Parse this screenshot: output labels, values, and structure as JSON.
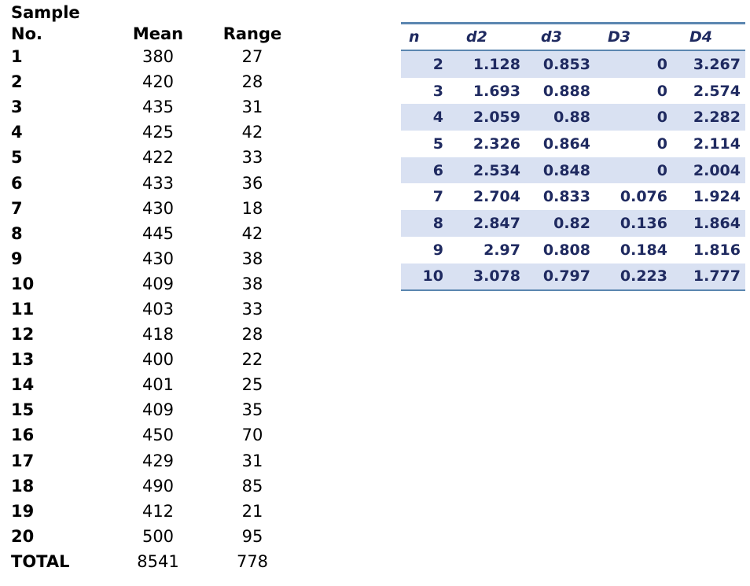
{
  "sample_table": {
    "title_line1": "Sample",
    "headers": [
      "No.",
      "Mean",
      "Range"
    ],
    "rows": [
      [
        "1",
        "380",
        "27"
      ],
      [
        "2",
        "420",
        "28"
      ],
      [
        "3",
        "435",
        "31"
      ],
      [
        "4",
        "425",
        "42"
      ],
      [
        "5",
        "422",
        "33"
      ],
      [
        "6",
        "433",
        "36"
      ],
      [
        "7",
        "430",
        "18"
      ],
      [
        "8",
        "445",
        "42"
      ],
      [
        "9",
        "430",
        "38"
      ],
      [
        "10",
        "409",
        "38"
      ],
      [
        "11",
        "403",
        "33"
      ],
      [
        "12",
        "418",
        "28"
      ],
      [
        "13",
        "400",
        "22"
      ],
      [
        "14",
        "401",
        "25"
      ],
      [
        "15",
        "409",
        "35"
      ],
      [
        "16",
        "450",
        "70"
      ],
      [
        "17",
        "429",
        "31"
      ],
      [
        "18",
        "490",
        "85"
      ],
      [
        "19",
        "412",
        "21"
      ],
      [
        "20",
        "500",
        "95"
      ]
    ],
    "total_row": [
      "TOTAL",
      "8541",
      "778"
    ]
  },
  "constants_table": {
    "headers": [
      "n",
      "d2",
      "d3",
      "D3",
      "D4"
    ],
    "rows": [
      [
        "2",
        "1.128",
        "0.853",
        "0",
        "3.267"
      ],
      [
        "3",
        "1.693",
        "0.888",
        "0",
        "2.574"
      ],
      [
        "4",
        "2.059",
        "0.88",
        "0",
        "2.282"
      ],
      [
        "5",
        "2.326",
        "0.864",
        "0",
        "2.114"
      ],
      [
        "6",
        "2.534",
        "0.848",
        "0",
        "2.004"
      ],
      [
        "7",
        "2.704",
        "0.833",
        "0.076",
        "1.924"
      ],
      [
        "8",
        "2.847",
        "0.82",
        "0.136",
        "1.864"
      ],
      [
        "9",
        "2.97",
        "0.808",
        "0.184",
        "1.816"
      ],
      [
        "10",
        "3.078",
        "0.797",
        "0.223",
        "1.777"
      ]
    ],
    "colors": {
      "stripe": "#D9E1F2",
      "border": "#5B86B0",
      "text": "#1F2A60"
    }
  }
}
